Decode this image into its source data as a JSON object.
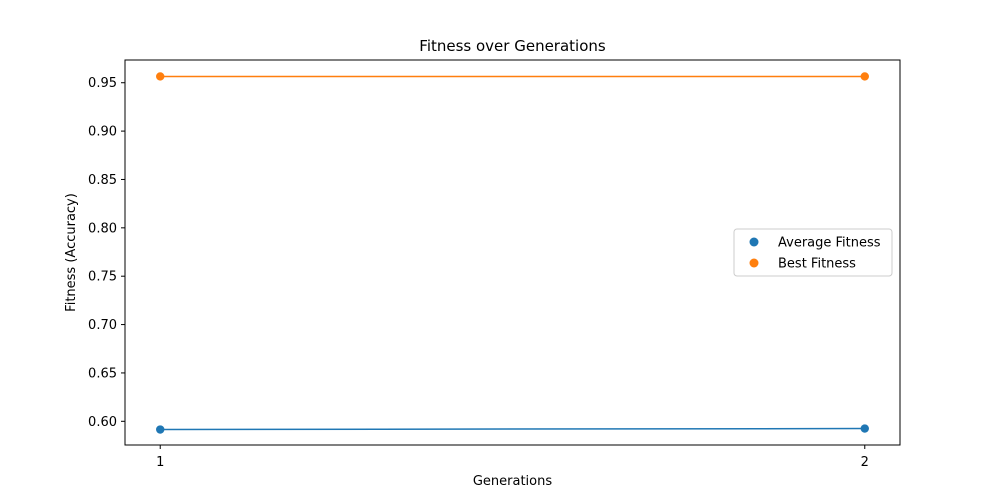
{
  "chart_data": {
    "type": "line",
    "title": "Fitness over Generations",
    "xlabel": "Generations",
    "ylabel": "Fitness (Accuracy)",
    "x": [
      1,
      2
    ],
    "xticks": [
      "1",
      "2"
    ],
    "xlim": [
      0.95,
      2.05
    ],
    "yticks": [
      "0.60",
      "0.65",
      "0.70",
      "0.75",
      "0.80",
      "0.85",
      "0.90",
      "0.95"
    ],
    "ylim": [
      0.5755,
      0.9735
    ],
    "grid": false,
    "legend_position": "center-right",
    "series": [
      {
        "name": "Average Fitness",
        "values": [
          0.5915,
          0.5925
        ],
        "color": "#1f77b4"
      },
      {
        "name": "Best Fitness",
        "values": [
          0.9565,
          0.9565
        ],
        "color": "#ff7f0e"
      }
    ]
  }
}
